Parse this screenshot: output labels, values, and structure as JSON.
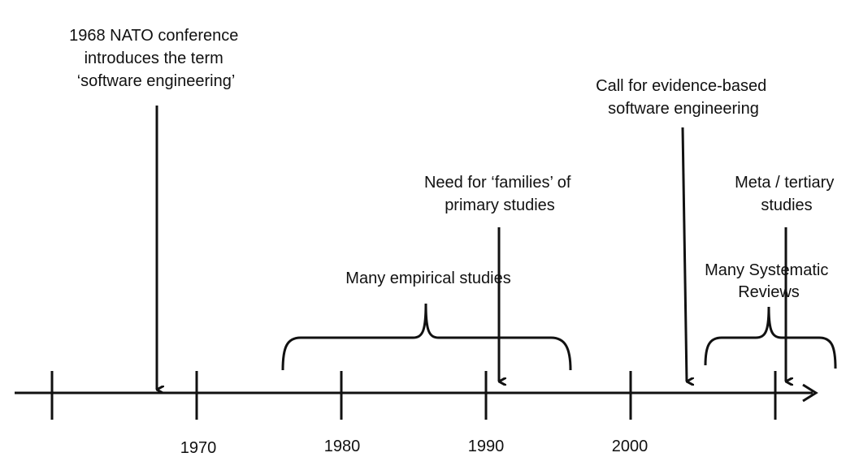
{
  "timeline": {
    "ticks": [
      "1970",
      "1980",
      "1990",
      "2000"
    ]
  },
  "events": {
    "nato": [
      "1968 NATO conference",
      "introduces the term",
      "‘software engineering’"
    ],
    "families": [
      "Need for ‘families’ of",
      "primary studies"
    ],
    "ebse": [
      "Call for evidence-based",
      "software engineering"
    ],
    "meta": [
      "Meta / tertiary",
      "studies"
    ]
  },
  "periods": {
    "empirical": [
      "Many empirical studies"
    ],
    "systematic": [
      "Many Systematic",
      "Reviews"
    ]
  },
  "colors": {
    "ink": "#111111"
  }
}
